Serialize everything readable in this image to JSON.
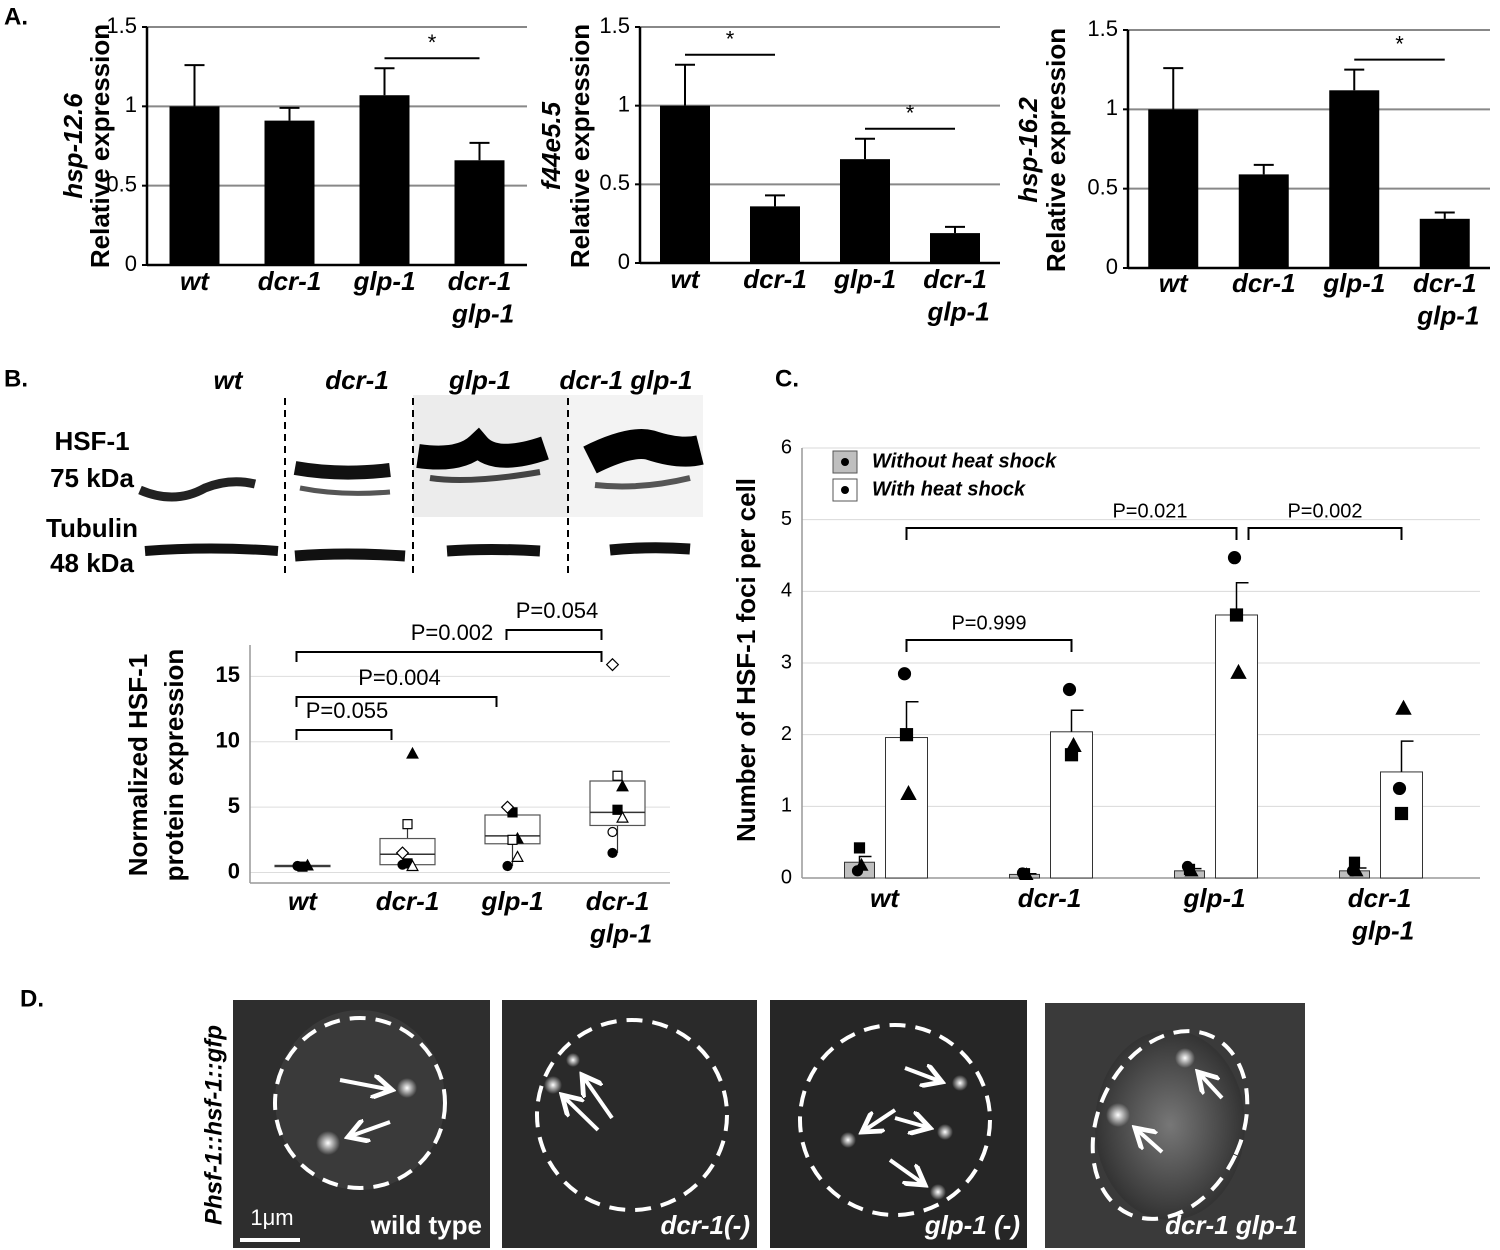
{
  "panel_labels": [
    "A.",
    "B.",
    "C.",
    "D."
  ],
  "chart_data": [
    {
      "type": "bar",
      "ylabel": [
        "hsp-12.6",
        "Relative expression"
      ],
      "categories": [
        "wt",
        "dcr-1",
        "glp-1",
        "dcr-1 glp-1"
      ],
      "values": [
        1.0,
        0.91,
        1.07,
        0.66
      ],
      "errors": [
        0.26,
        0.08,
        0.17,
        0.11
      ],
      "color": "#000000",
      "ylim": [
        0,
        1.5
      ],
      "yticks": [
        0,
        0.5,
        1,
        1.5
      ],
      "grid": true,
      "annotations": [
        {
          "text": "*",
          "between": [
            2,
            3
          ]
        }
      ]
    },
    {
      "type": "bar",
      "ylabel": [
        "f44e5.5",
        "Relative expression"
      ],
      "categories": [
        "wt",
        "dcr-1",
        "glp-1",
        "dcr-1 glp-1"
      ],
      "values": [
        1.0,
        0.36,
        0.66,
        0.19
      ],
      "errors": [
        0.26,
        0.07,
        0.13,
        0.04
      ],
      "color": "#000000",
      "ylim": [
        0,
        1.5
      ],
      "yticks": [
        0,
        0.5,
        1,
        1.5
      ],
      "grid": true,
      "annotations": [
        {
          "text": "*",
          "between": [
            0,
            1
          ]
        },
        {
          "text": "*",
          "between": [
            2,
            3
          ]
        }
      ]
    },
    {
      "type": "bar",
      "ylabel": [
        "hsp-16.2",
        "Relative expression"
      ],
      "categories": [
        "wt",
        "dcr-1",
        "glp-1",
        "dcr-1 glp-1"
      ],
      "values": [
        1.0,
        0.59,
        1.12,
        0.31
      ],
      "errors": [
        0.26,
        0.06,
        0.13,
        0.04
      ],
      "color": "#000000",
      "ylim": [
        0,
        1.5
      ],
      "yticks": [
        0,
        0.5,
        1,
        1.5
      ],
      "grid": true,
      "annotations": [
        {
          "text": "*",
          "between": [
            2,
            3
          ]
        }
      ]
    },
    {
      "type": "box",
      "ylabel": [
        "Normalized HSF-1",
        "protein expression"
      ],
      "categories": [
        "wt",
        "dcr-1",
        "glp-1",
        "dcr-1 glp-1"
      ],
      "boxes": [
        {
          "min": 0.4,
          "q1": 0.45,
          "median": 0.5,
          "q3": 0.55,
          "max": 0.6,
          "points": [
            0.5,
            0.45,
            0.55
          ]
        },
        {
          "min": 0.5,
          "q1": 0.6,
          "median": 1.4,
          "q3": 2.6,
          "max": 3.7,
          "points": [
            0.6,
            0.7,
            9.1,
            1.5,
            3.7,
            0.5
          ]
        },
        {
          "min": 0.5,
          "q1": 2.2,
          "median": 2.8,
          "q3": 4.4,
          "max": 4.9,
          "points": [
            0.5,
            4.6,
            2.6,
            5.0,
            2.5,
            1.2
          ]
        },
        {
          "min": 1.5,
          "q1": 3.6,
          "median": 4.6,
          "q3": 7.0,
          "max": 7.4,
          "points": [
            1.5,
            4.8,
            6.6,
            15.9,
            7.4,
            4.2,
            3.1
          ]
        }
      ],
      "ylim": [
        -0.8,
        17.4
      ],
      "yticks": [
        0,
        5,
        10,
        15
      ],
      "grid": true,
      "annotations": [
        {
          "text": "P=0.055",
          "between": [
            0,
            1
          ]
        },
        {
          "text": "P=0.004",
          "between": [
            0,
            2
          ]
        },
        {
          "text": "P=0.002",
          "between": [
            0,
            3
          ]
        },
        {
          "text": "P=0.054",
          "between": [
            2,
            3
          ]
        }
      ]
    },
    {
      "type": "bar",
      "ylabel": [
        "Number of HSF-1 foci per cell"
      ],
      "categories": [
        "wt",
        "dcr-1",
        "glp-1",
        "dcr-1 glp-1"
      ],
      "series": [
        {
          "name": "Without heat shock",
          "color": "#bfbfbf",
          "values": [
            0.22,
            0.05,
            0.1,
            0.1
          ],
          "errors": [
            0.08,
            0.01,
            0.03,
            0.04
          ],
          "points": [
            [
              0.1,
              0.42,
              0.18
            ],
            [
              0.07,
              0.06,
              0.05
            ],
            [
              0.16,
              0.12,
              0.1
            ],
            [
              0.1,
              0.22,
              0.1
            ]
          ]
        },
        {
          "name": "With heat shock",
          "color": "#ffffff",
          "values": [
            1.96,
            2.04,
            3.67,
            1.48
          ],
          "errors": [
            0.5,
            0.3,
            0.45,
            0.43
          ],
          "points": [
            [
              2.85,
              2.0,
              1.18
            ],
            [
              2.63,
              1.72,
              1.85
            ],
            [
              4.47,
              3.67,
              2.87
            ],
            [
              1.25,
              0.9,
              2.37
            ]
          ]
        }
      ],
      "ylim": [
        0,
        6
      ],
      "yticks": [
        0,
        1,
        2,
        3,
        4,
        5,
        6
      ],
      "grid": true,
      "legend": "top-left",
      "annotations": [
        {
          "text": "P=0.999",
          "between": [
            0,
            1
          ]
        },
        {
          "text": "P=0.021",
          "between": [
            0,
            2
          ]
        },
        {
          "text": "P=0.002",
          "between": [
            2,
            3
          ]
        }
      ]
    }
  ],
  "blot": {
    "lanes": [
      "wt",
      "dcr-1",
      "glp-1",
      "dcr-1 glp-1"
    ],
    "bands": [
      "HSF-1",
      "75 kDa",
      "Tubulin",
      "48 kDa"
    ]
  },
  "micrographs": {
    "construct": "Phsf-1::hsf-1::gfp",
    "scale": "1μm",
    "labels": [
      "wild type",
      "dcr-1(-)",
      "glp-1 (-)",
      "dcr-1 glp-1"
    ]
  }
}
